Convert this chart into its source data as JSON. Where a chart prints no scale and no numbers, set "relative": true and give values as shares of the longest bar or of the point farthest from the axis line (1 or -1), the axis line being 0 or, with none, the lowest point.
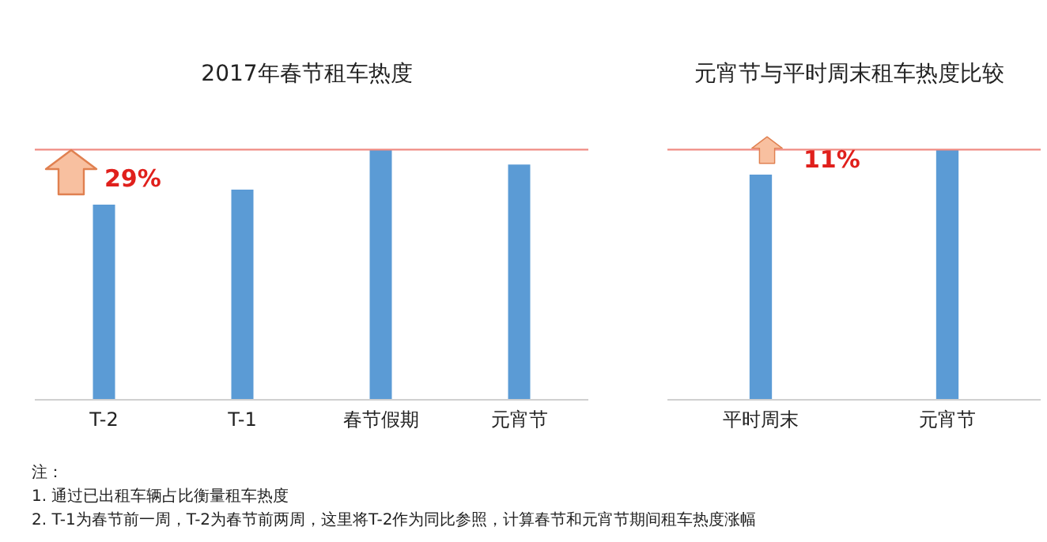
{
  "chart_data": [
    {
      "type": "bar",
      "title": "2017年春节租车热度",
      "relative": true,
      "categories": [
        "T-2",
        "T-1",
        "春节假期",
        "元宵节"
      ],
      "values": [
        0.78,
        0.84,
        1,
        0.94
      ],
      "color": "#5b9bd5",
      "ref_lines": [
        {
          "axis": "y",
          "value": 1,
          "color": "#f08c84"
        }
      ],
      "annotations": [
        "29%",
        "注：",
        "1.  通过已出租车辆占比衡量租车热度",
        "2.  T-1为春节前一周，T-2为春节前两周，这里将T-2作为同比参照，计算春节和元宵节期间租车热度涨幅"
      ]
    },
    {
      "type": "bar",
      "title": "元宵节与平时周末租车热度比较",
      "relative": true,
      "categories": [
        "平时周末",
        "元宵节"
      ],
      "values": [
        0.9,
        1
      ],
      "color": "#5b9bd5",
      "ref_lines": [
        {
          "axis": "y",
          "value": 1,
          "color": "#f08c84"
        }
      ],
      "annotations": [
        "11%"
      ]
    }
  ]
}
